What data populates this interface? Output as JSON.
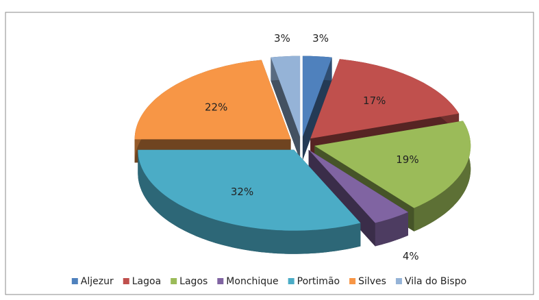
{
  "chart_data": {
    "type": "pie3d",
    "categories": [
      "Aljezur",
      "Lagoa",
      "Lagos",
      "Monchique",
      "Portimão",
      "Silves",
      "Vila do Bispo"
    ],
    "values": [
      3,
      17,
      19,
      4,
      32,
      22,
      3
    ],
    "value_labels": [
      "3%",
      "17%",
      "19%",
      "4%",
      "32%",
      "22%",
      "3%"
    ],
    "colors": [
      "#4f81bd",
      "#c0504d",
      "#9bbb59",
      "#8064a2",
      "#4bacc6",
      "#f79646",
      "#95b3d7"
    ],
    "legend": "bottom"
  }
}
